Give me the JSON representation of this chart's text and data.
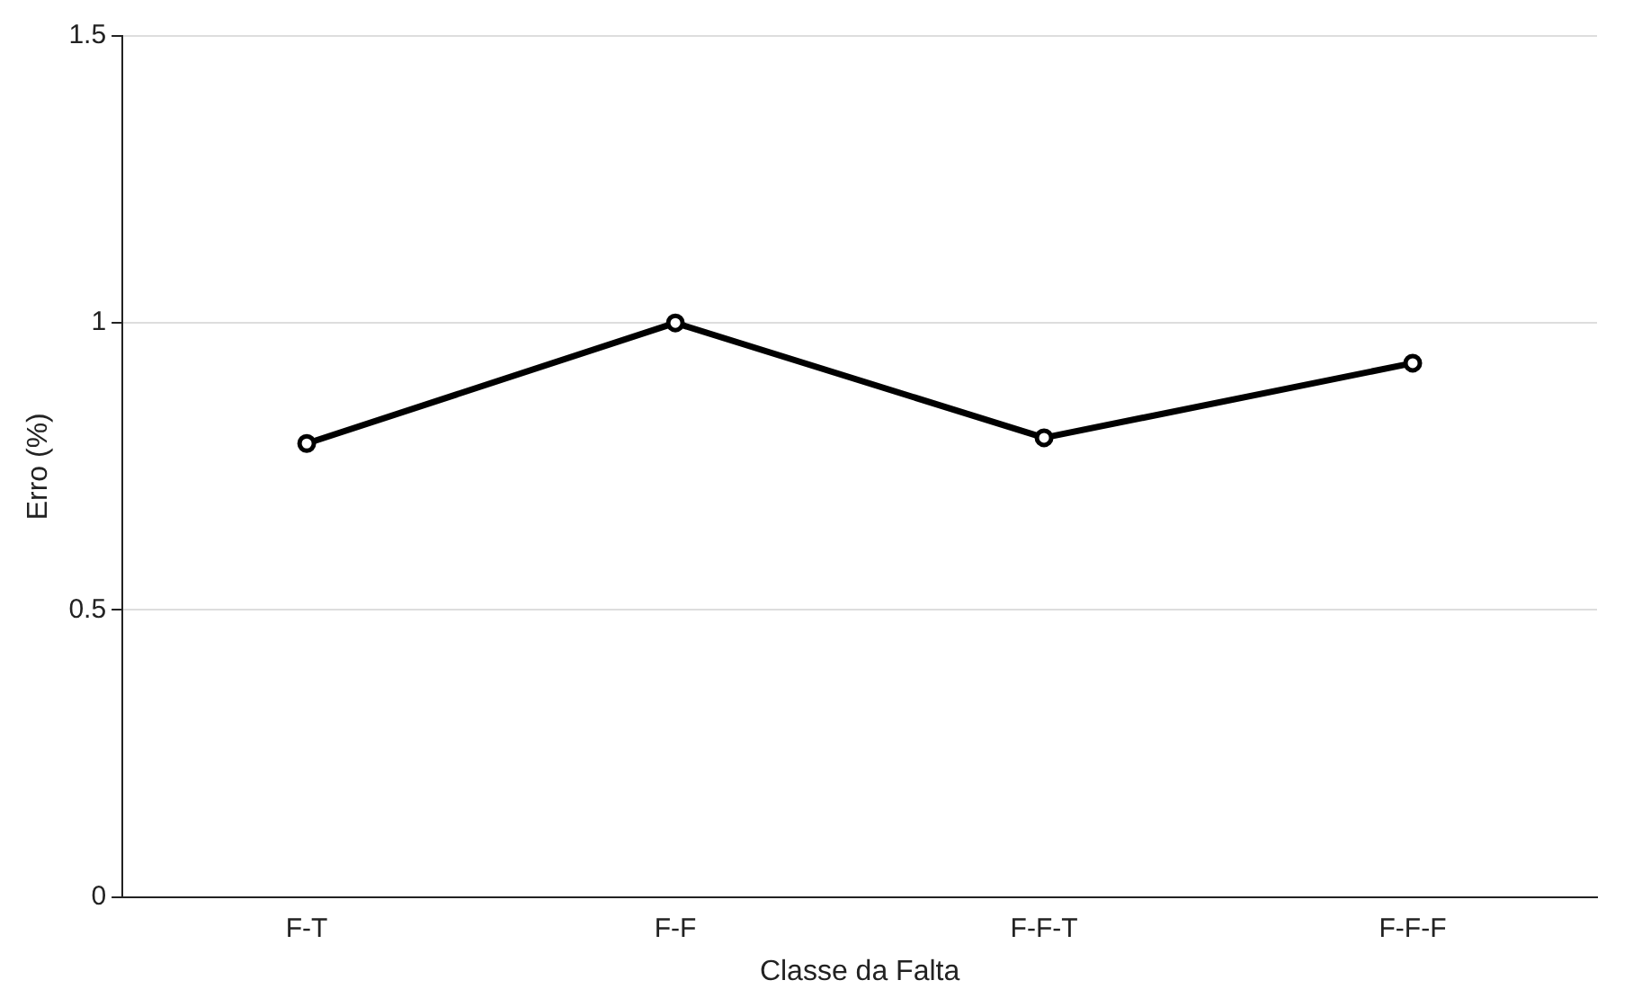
{
  "chart_data": {
    "type": "line",
    "xlabel": "Classe da Falta",
    "ylabel": "Erro (%)",
    "categories": [
      "F-T",
      "F-F",
      "F-F-T",
      "F-F-F"
    ],
    "series": [
      {
        "color": "#000000",
        "values": [
          0.79,
          1.0,
          0.8,
          0.93
        ]
      }
    ],
    "ylim": [
      0,
      1.5
    ],
    "yticks": [
      0,
      0.5,
      1,
      1.5
    ],
    "grid": "y",
    "legend": false,
    "marker": "circle",
    "line_style": "solid"
  }
}
